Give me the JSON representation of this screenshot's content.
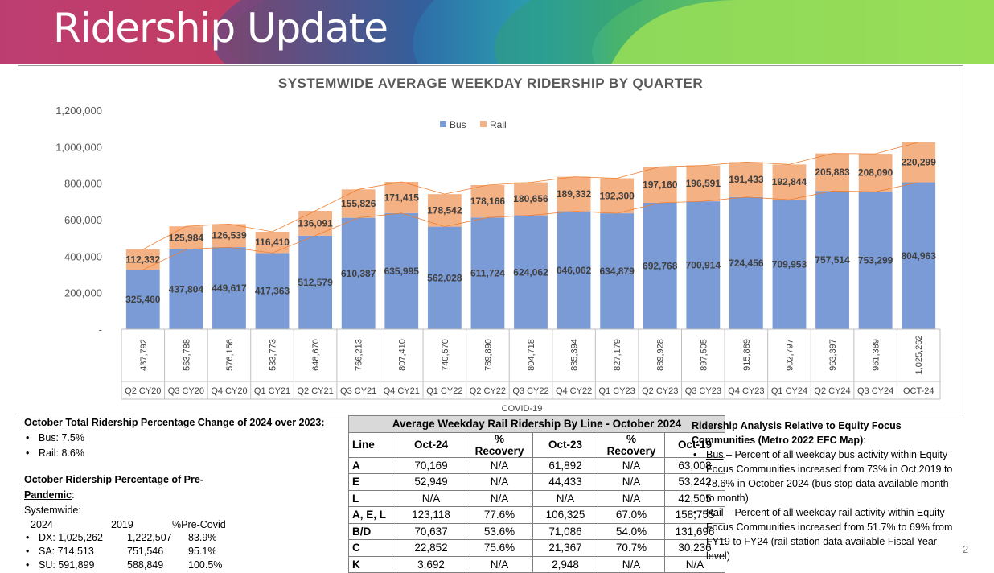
{
  "title": "Ridership Update",
  "page_number": "2",
  "colors": {
    "bus": "#7a9bd6",
    "rail": "#f4b183"
  },
  "chart_data": {
    "type": "bar",
    "stacked": true,
    "title": "SYSTEMWIDE AVERAGE WEEKDAY RIDERSHIP BY QUARTER",
    "categories": [
      "Q2 CY20",
      "Q3 CY20",
      "Q4 CY20",
      "Q1 CY21",
      "Q2 CY21",
      "Q3 CY21",
      "Q4 CY21",
      "Q1 CY22",
      "Q2 CY22",
      "Q3 CY22",
      "Q4 CY22",
      "Q1 CY23",
      "Q2 CY23",
      "Q3 CY23",
      "Q4 CY23",
      "Q1 CY24",
      "Q2 CY24",
      "Q3 CY24",
      "OCT-24"
    ],
    "series": [
      {
        "name": "Bus",
        "values": [
          325460,
          437804,
          449617,
          417363,
          512579,
          610387,
          635995,
          562028,
          611724,
          624062,
          646062,
          634879,
          692768,
          700914,
          724456,
          709953,
          757514,
          753299,
          804963
        ]
      },
      {
        "name": "Rail",
        "values": [
          112332,
          125984,
          126539,
          116410,
          136091,
          155826,
          171415,
          178542,
          178166,
          180656,
          189332,
          192300,
          197160,
          196591,
          191433,
          192844,
          205883,
          208090,
          220299
        ]
      }
    ],
    "bus_labels": [
      "325,460",
      "437,804",
      "449,617",
      "417,363",
      "512,579",
      "610,387",
      "635,995",
      "562,028",
      "611,724",
      "624,062",
      "646,062",
      "634,879",
      "692,768",
      "700,914",
      "724,456",
      "709,953",
      "757,514",
      "753,299",
      "804,963"
    ],
    "rail_labels": [
      "112,332",
      "125,984",
      "126,539",
      "116,410",
      "136,091",
      "155,826",
      "171,415",
      "178,542",
      "178,166",
      "180,656",
      "189,332",
      "192,300",
      "197,160",
      "196,591",
      "191,433",
      "192,844",
      "205,883",
      "208,090",
      "220,299"
    ],
    "total_labels": [
      "437,792",
      "563,788",
      "576,156",
      "533,773",
      "648,670",
      "766,213",
      "807,410",
      "740,570",
      "789,890",
      "804,718",
      "835,394",
      "827,179",
      "889,928",
      "897,505",
      "915,889",
      "902,797",
      "963,397",
      "961,389",
      "1,025,262"
    ],
    "yticks": [
      0,
      200000,
      400000,
      600000,
      800000,
      1000000,
      1200000
    ],
    "ytick_labels": [
      "-",
      "200,000",
      "400,000",
      "600,000",
      "800,000",
      "1,000,000",
      "1,200,000"
    ],
    "ylim": [
      0,
      1200000
    ],
    "legend": [
      "Bus",
      "Rail"
    ],
    "annotation": "COVID-19"
  },
  "left": {
    "heading1": "October Total Ridership Percentage Change of 2024 over 2023",
    "heading1_suffix": ":",
    "bus": "Bus:  7.5%",
    "rail": "Rail:  8.6%",
    "heading2": "October Ridership Percentage of Pre-Pandemic",
    "heading2_suffix": ":",
    "systemwide": "Systemwide:",
    "col_2024": "2024",
    "col_2019": "2019",
    "col_pct": "%Pre-Covid",
    "rows": [
      {
        "a": "DX: 1,025,262",
        "b": "1,222,507",
        "c": "83.9%"
      },
      {
        "a": "SA: 714,513",
        "b": "751,546",
        "c": "95.1%"
      },
      {
        "a": "SU: 591,899",
        "b": "588,849",
        "c": "100.5%"
      }
    ]
  },
  "table": {
    "title": "Average Weekday Rail Ridership By Line - October 2024",
    "headers": [
      "Line",
      "Oct-24",
      "% Recovery",
      "Oct-23",
      "% Recovery",
      "Oct-19"
    ],
    "rows": [
      [
        "A",
        "70,169",
        "N/A",
        "61,892",
        "N/A",
        "63,008"
      ],
      [
        "E",
        "52,949",
        "N/A",
        "44,433",
        "N/A",
        "53,242"
      ],
      [
        "L",
        "N/A",
        "N/A",
        "N/A",
        "N/A",
        "42,505"
      ],
      [
        "A, E, L",
        "123,118",
        "77.6%",
        "106,325",
        "67.0%",
        "158,755"
      ],
      [
        "B/D",
        "70,637",
        "53.6%",
        "71,086",
        "54.0%",
        "131,696"
      ],
      [
        "C",
        "22,852",
        "75.6%",
        "21,367",
        "70.7%",
        "30,236"
      ],
      [
        "K",
        "3,692",
        "N/A",
        "2,948",
        "N/A",
        "N/A"
      ]
    ]
  },
  "right": {
    "heading": "Ridership Analysis Relative to Equity Focus Communities (Metro 2022 EFC Map)",
    "heading_suffix": ":",
    "bus_label": "Bus",
    "bus_text": " – Percent of all weekday bus activity within Equity Focus Communities increased from 73% in Oct 2019 to 78.6% in October 2024 (bus stop data available month to month)",
    "rail_label": "Rail",
    "rail_text": " – Percent of all weekday rail activity within Equity Focus Communities increased from 51.7% to 69% from FY19 to FY24 (rail station data available Fiscal Year level)"
  }
}
